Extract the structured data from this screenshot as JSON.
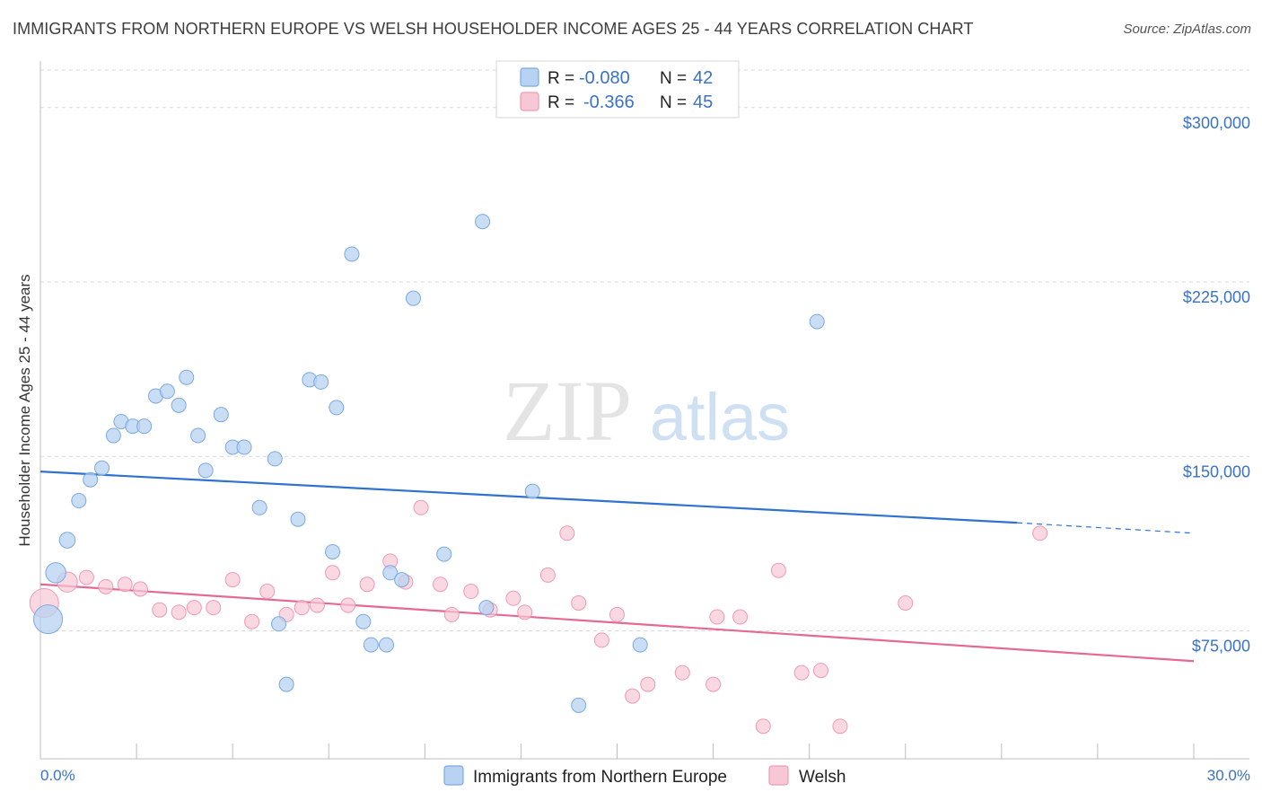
{
  "title": "IMMIGRANTS FROM NORTHERN EUROPE VS WELSH HOUSEHOLDER INCOME AGES 25 - 44 YEARS CORRELATION CHART",
  "source": "Source: ZipAtlas.com",
  "watermark": {
    "zip": "ZIP",
    "atlas": "atlas"
  },
  "colors": {
    "blue_fill": "#b7d2f2",
    "blue_stroke": "#7aaae0",
    "blue_line": "#2f72d0",
    "pink_fill": "#f8c7d5",
    "pink_stroke": "#ee9ab3",
    "pink_line": "#e46a93",
    "axis_text": "#3a72c4",
    "grid": "#d9d9d9"
  },
  "legend": {
    "rows": [
      {
        "r_label": "R =",
        "r_value": "-0.080",
        "n_label": "N =",
        "n_value": "42"
      },
      {
        "r_label": "R =",
        "r_value": "-0.366",
        "n_label": "N =",
        "n_value": "45"
      }
    ]
  },
  "chart_data": {
    "type": "scatter",
    "title": "IMMIGRANTS FROM NORTHERN EUROPE VS WELSH HOUSEHOLDER INCOME AGES 25 - 44 YEARS CORRELATION CHART",
    "xlabel": "",
    "ylabel": "Householder Income Ages 25 - 44 years",
    "xlim": [
      0,
      30
    ],
    "ylim": [
      20000,
      320000
    ],
    "x_tick_labels": [
      "0.0%",
      "30.0%"
    ],
    "y_ticks": [
      75000,
      150000,
      225000,
      300000
    ],
    "y_tick_labels": [
      "$75,000",
      "$150,000",
      "$225,000",
      "$300,000"
    ],
    "grid": true,
    "series": [
      {
        "name": "Immigrants from Northern Europe",
        "color": "blue",
        "trend": {
          "x": [
            0,
            25.4
          ],
          "y": [
            143500,
            121500
          ],
          "dash_x": [
            25.4,
            30
          ],
          "dash_y": [
            121500,
            117000
          ]
        },
        "points": [
          [
            0.2,
            80000,
            2.0
          ],
          [
            0.4,
            100000,
            1.4
          ],
          [
            0.7,
            114000,
            1.1
          ],
          [
            1.0,
            131000,
            1.0
          ],
          [
            1.3,
            140000,
            1.0
          ],
          [
            1.6,
            145000,
            1.0
          ],
          [
            1.9,
            159000,
            1.0
          ],
          [
            2.1,
            165000,
            1.0
          ],
          [
            2.4,
            163000,
            1.0
          ],
          [
            2.7,
            163000,
            1.0
          ],
          [
            3.0,
            176000,
            1.0
          ],
          [
            3.3,
            178000,
            1.0
          ],
          [
            3.6,
            172000,
            1.0
          ],
          [
            3.8,
            184000,
            1.0
          ],
          [
            4.1,
            159000,
            1.0
          ],
          [
            4.3,
            144000,
            1.0
          ],
          [
            4.7,
            168000,
            1.0
          ],
          [
            5.0,
            154000,
            1.0
          ],
          [
            5.3,
            154000,
            1.0
          ],
          [
            5.7,
            128000,
            1.0
          ],
          [
            6.1,
            149000,
            1.0
          ],
          [
            6.2,
            78000,
            1.0
          ],
          [
            6.4,
            52000,
            1.0
          ],
          [
            6.7,
            123000,
            1.0
          ],
          [
            7.0,
            183000,
            1.0
          ],
          [
            7.3,
            182000,
            1.0
          ],
          [
            7.7,
            171000,
            1.0
          ],
          [
            7.6,
            109000,
            1.0
          ],
          [
            8.1,
            237000,
            1.0
          ],
          [
            8.4,
            79000,
            1.0
          ],
          [
            8.6,
            69000,
            1.0
          ],
          [
            9.0,
            69000,
            1.0
          ],
          [
            9.1,
            100000,
            1.0
          ],
          [
            9.4,
            97000,
            1.0
          ],
          [
            9.7,
            218000,
            1.0
          ],
          [
            10.5,
            108000,
            1.0
          ],
          [
            11.5,
            251000,
            1.0
          ],
          [
            11.6,
            85000,
            1.0
          ],
          [
            12.8,
            135000,
            1.0
          ],
          [
            14.0,
            43000,
            1.0
          ],
          [
            15.6,
            69000,
            1.0
          ],
          [
            20.2,
            208000,
            1.0
          ]
        ]
      },
      {
        "name": "Welsh",
        "color": "pink",
        "trend": {
          "x": [
            0,
            30
          ],
          "y": [
            95000,
            62000
          ]
        },
        "points": [
          [
            0.1,
            87000,
            2.0
          ],
          [
            0.7,
            96000,
            1.4
          ],
          [
            1.2,
            98000,
            1.0
          ],
          [
            1.7,
            94000,
            1.0
          ],
          [
            2.2,
            95000,
            1.0
          ],
          [
            2.6,
            93000,
            1.0
          ],
          [
            3.1,
            84000,
            1.0
          ],
          [
            3.6,
            83000,
            1.0
          ],
          [
            4.0,
            85000,
            1.0
          ],
          [
            4.5,
            85000,
            1.0
          ],
          [
            5.0,
            97000,
            1.0
          ],
          [
            5.5,
            79000,
            1.0
          ],
          [
            5.9,
            92000,
            1.0
          ],
          [
            6.4,
            82000,
            1.0
          ],
          [
            6.8,
            85000,
            1.0
          ],
          [
            7.2,
            86000,
            1.0
          ],
          [
            7.6,
            100000,
            1.0
          ],
          [
            8.0,
            86000,
            1.0
          ],
          [
            8.5,
            95000,
            1.0
          ],
          [
            9.1,
            105000,
            1.0
          ],
          [
            9.5,
            96000,
            1.0
          ],
          [
            9.9,
            128000,
            1.0
          ],
          [
            10.4,
            95000,
            1.0
          ],
          [
            10.7,
            82000,
            1.0
          ],
          [
            11.2,
            92000,
            1.0
          ],
          [
            11.7,
            84000,
            1.0
          ],
          [
            12.3,
            89000,
            1.0
          ],
          [
            12.6,
            83000,
            1.0
          ],
          [
            13.2,
            99000,
            1.0
          ],
          [
            13.7,
            117000,
            1.0
          ],
          [
            14.0,
            87000,
            1.0
          ],
          [
            14.6,
            71000,
            1.0
          ],
          [
            15.0,
            82000,
            1.0
          ],
          [
            15.4,
            47000,
            1.0
          ],
          [
            15.8,
            52000,
            1.0
          ],
          [
            16.7,
            57000,
            1.0
          ],
          [
            17.5,
            52000,
            1.0
          ],
          [
            17.6,
            81000,
            1.0
          ],
          [
            18.2,
            81000,
            1.0
          ],
          [
            18.8,
            34000,
            1.0
          ],
          [
            19.2,
            101000,
            1.0
          ],
          [
            19.8,
            57000,
            1.0
          ],
          [
            20.3,
            58000,
            1.0
          ],
          [
            20.8,
            34000,
            1.0
          ],
          [
            22.5,
            87000,
            1.0
          ],
          [
            26.0,
            117000,
            1.0
          ]
        ]
      }
    ]
  },
  "bottom_legend": {
    "items": [
      {
        "label": "Immigrants from Northern Europe",
        "color": "blue"
      },
      {
        "label": "Welsh",
        "color": "pink"
      }
    ]
  }
}
